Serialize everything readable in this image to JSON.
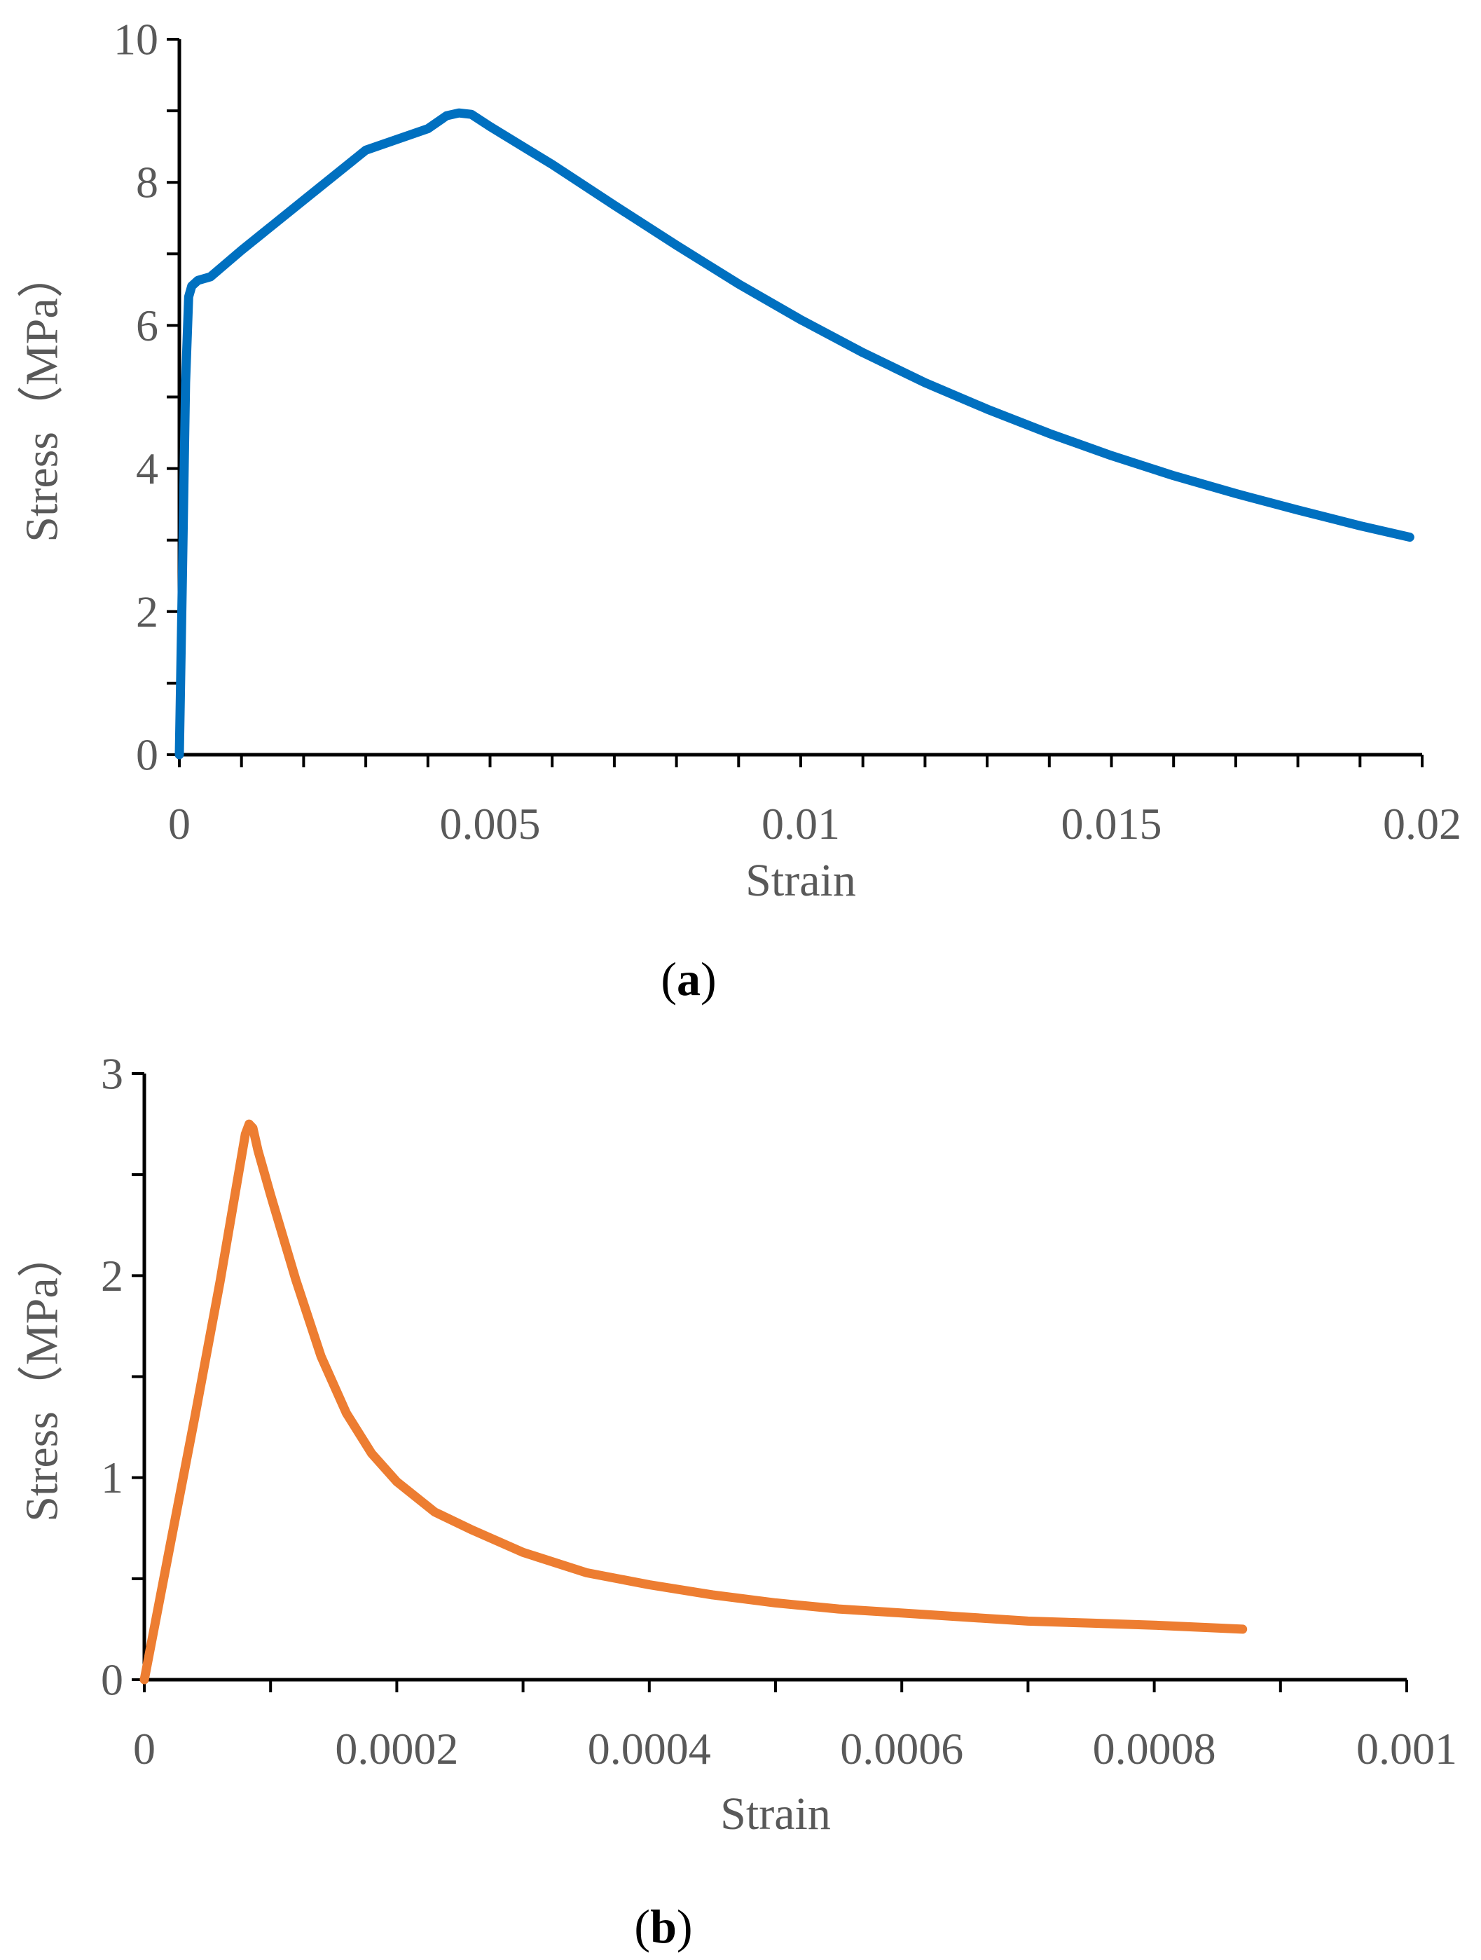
{
  "chart_data": [
    {
      "type": "line",
      "panel_label": "a",
      "xlabel": "Strain",
      "ylabel": "Stress（MPa）",
      "xlim": [
        0,
        0.02
      ],
      "ylim": [
        0,
        10
      ],
      "x_ticks": [
        0,
        0.005,
        0.01,
        0.015,
        0.02
      ],
      "x_tick_labels": [
        "0",
        "0.005",
        "0.01",
        "0.015",
        "0.02"
      ],
      "x_minor_step": 0.001,
      "y_ticks": [
        0,
        2,
        4,
        6,
        8,
        10
      ],
      "y_tick_labels": [
        "0",
        "2",
        "4",
        "6",
        "8",
        "10"
      ],
      "y_minor_step": 1,
      "grid": false,
      "series": [
        {
          "name": "Stress",
          "color": "#0070C0",
          "x": [
            0,
            5e-05,
            0.0001,
            0.00015,
            0.0002,
            0.0003,
            0.0005,
            0.001,
            0.002,
            0.003,
            0.004,
            0.0043,
            0.0045,
            0.0047,
            0.005,
            0.006,
            0.007,
            0.008,
            0.009,
            0.01,
            0.011,
            0.012,
            0.013,
            0.014,
            0.015,
            0.016,
            0.017,
            0.018,
            0.019,
            0.0198
          ],
          "values": [
            0,
            2.5,
            5.2,
            6.4,
            6.55,
            6.63,
            6.68,
            7.05,
            7.75,
            8.45,
            8.75,
            8.93,
            8.97,
            8.95,
            8.78,
            8.25,
            7.68,
            7.12,
            6.58,
            6.08,
            5.62,
            5.2,
            4.83,
            4.49,
            4.18,
            3.9,
            3.65,
            3.42,
            3.2,
            3.04
          ]
        }
      ]
    },
    {
      "type": "line",
      "panel_label": "b",
      "xlabel": "Strain",
      "ylabel": "Stress（MPa）",
      "xlim": [
        0,
        0.001
      ],
      "ylim": [
        0,
        3
      ],
      "x_ticks": [
        0,
        0.0002,
        0.0004,
        0.0006,
        0.0008,
        0.001
      ],
      "x_tick_labels": [
        "0",
        "0.0002",
        "0.0004",
        "0.0006",
        "0.0008",
        "0.001"
      ],
      "x_minor_step": 0.0001,
      "y_ticks": [
        0,
        1,
        2,
        3
      ],
      "y_tick_labels": [
        "0",
        "1",
        "2",
        "3"
      ],
      "y_minor_step": 0.5,
      "grid": false,
      "series": [
        {
          "name": "Stress",
          "color": "#ED7D31",
          "x": [
            0,
            2e-05,
            4e-05,
            6e-05,
            8e-05,
            8.3e-05,
            8.6e-05,
            9e-05,
            0.0001,
            0.00012,
            0.00014,
            0.00016,
            0.00018,
            0.0002,
            0.00023,
            0.00026,
            0.0003,
            0.00035,
            0.0004,
            0.00045,
            0.0005,
            0.00055,
            0.0006,
            0.00065,
            0.0007,
            0.00075,
            0.0008,
            0.00087
          ],
          "values": [
            0,
            0.65,
            1.3,
            1.97,
            2.7,
            2.75,
            2.73,
            2.62,
            2.4,
            1.98,
            1.6,
            1.32,
            1.12,
            0.98,
            0.83,
            0.74,
            0.63,
            0.53,
            0.47,
            0.42,
            0.38,
            0.35,
            0.33,
            0.31,
            0.29,
            0.28,
            0.27,
            0.25
          ]
        }
      ]
    }
  ]
}
